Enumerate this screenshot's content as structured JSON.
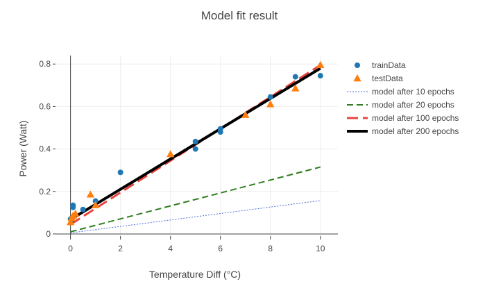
{
  "chart_data": {
    "type": "scatter",
    "title": "Model fit result",
    "xlabel": "Temperature Diff (°C)",
    "ylabel": "Power (Watt)",
    "xlim": [
      -0.6,
      10.7
    ],
    "ylim": [
      -0.01,
      0.84
    ],
    "xticks": [
      0,
      2,
      4,
      6,
      8,
      10
    ],
    "yticks": [
      0,
      0.2,
      0.4,
      0.6,
      0.8
    ],
    "ytick_labels": [
      "0",
      "0.2",
      "0.4",
      "0.6",
      "0.8"
    ],
    "grid": true,
    "legend_position": "top-right",
    "series": [
      {
        "name": "trainData",
        "kind": "markers",
        "marker": "circle",
        "color": "#1f77b4",
        "x": [
          0,
          0.05,
          0.1,
          0.1,
          0.5,
          1.0,
          2.0,
          5.0,
          5.0,
          6.0,
          6.0,
          8.0,
          9.0,
          10.0
        ],
        "y": [
          0.07,
          0.065,
          0.135,
          0.125,
          0.115,
          0.155,
          0.29,
          0.435,
          0.4,
          0.495,
          0.48,
          0.645,
          0.74,
          0.745
        ]
      },
      {
        "name": "testData",
        "kind": "markers",
        "marker": "triangle-up",
        "color": "#ff7f0e",
        "x": [
          0,
          0.05,
          0.1,
          0.2,
          0.8,
          1.0,
          4.0,
          7.0,
          8.0,
          9.0,
          10.0
        ],
        "y": [
          0.055,
          0.075,
          0.085,
          0.095,
          0.185,
          0.135,
          0.375,
          0.56,
          0.61,
          0.685,
          0.795
        ]
      },
      {
        "name": "model after 10 epochs",
        "kind": "line",
        "color": "#4a6bd8",
        "dash": "dot",
        "width": 1,
        "x": [
          0,
          10
        ],
        "y": [
          0.005,
          0.157
        ]
      },
      {
        "name": "model after 20 epochs",
        "kind": "line",
        "color": "#2e7d1f",
        "dash": "dash",
        "width": 2,
        "x": [
          0,
          10
        ],
        "y": [
          0.01,
          0.315
        ]
      },
      {
        "name": "model after 100 epochs",
        "kind": "line",
        "color": "#e8433a",
        "dash": "longdash",
        "width": 3,
        "x": [
          0,
          10
        ],
        "y": [
          0.045,
          0.795
        ]
      },
      {
        "name": "model after 200 epochs",
        "kind": "line",
        "color": "#000000",
        "dash": "solid",
        "width": 4,
        "x": [
          0,
          10
        ],
        "y": [
          0.068,
          0.78
        ]
      }
    ]
  }
}
